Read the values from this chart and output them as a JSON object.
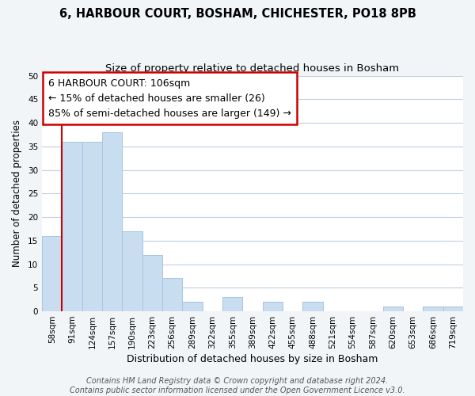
{
  "title": "6, HARBOUR COURT, BOSHAM, CHICHESTER, PO18 8PB",
  "subtitle": "Size of property relative to detached houses in Bosham",
  "xlabel": "Distribution of detached houses by size in Bosham",
  "ylabel": "Number of detached properties",
  "categories": [
    "58sqm",
    "91sqm",
    "124sqm",
    "157sqm",
    "190sqm",
    "223sqm",
    "256sqm",
    "289sqm",
    "322sqm",
    "355sqm",
    "389sqm",
    "422sqm",
    "455sqm",
    "488sqm",
    "521sqm",
    "554sqm",
    "587sqm",
    "620sqm",
    "653sqm",
    "686sqm",
    "719sqm"
  ],
  "values": [
    16,
    36,
    36,
    38,
    17,
    12,
    7,
    2,
    0,
    3,
    0,
    2,
    0,
    2,
    0,
    0,
    0,
    1,
    0,
    1,
    1
  ],
  "bar_color": "#c8ddf0",
  "bar_edge_color": "#a8c4e0",
  "vline_color": "#cc0000",
  "vline_x": 0.5,
  "annotation_line1": "6 HARBOUR COURT: 106sqm",
  "annotation_line2": "← 15% of detached houses are smaller (26)",
  "annotation_line3": "85% of semi-detached houses are larger (149) →",
  "annotation_box_color": "#ffffff",
  "annotation_box_edge": "#cc0000",
  "ylim": [
    0,
    50
  ],
  "yticks": [
    0,
    5,
    10,
    15,
    20,
    25,
    30,
    35,
    40,
    45,
    50
  ],
  "footer_line1": "Contains HM Land Registry data © Crown copyright and database right 2024.",
  "footer_line2": "Contains public sector information licensed under the Open Government Licence v3.0.",
  "title_fontsize": 10.5,
  "subtitle_fontsize": 9.5,
  "xlabel_fontsize": 9,
  "ylabel_fontsize": 8.5,
  "tick_fontsize": 7.5,
  "annotation_fontsize": 9,
  "footer_fontsize": 7,
  "background_color": "#f2f5f8",
  "plot_background_color": "#ffffff",
  "grid_color": "#c0d0e0"
}
